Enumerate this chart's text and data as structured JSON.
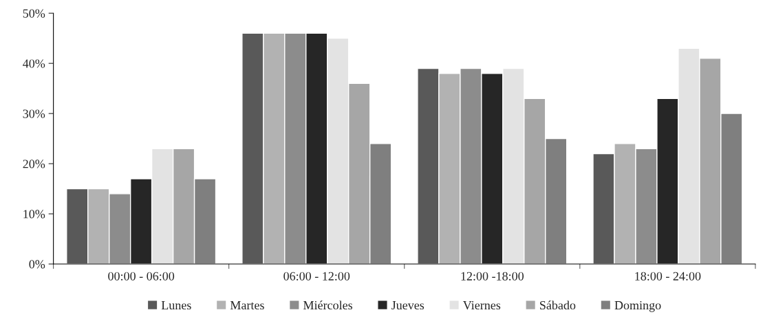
{
  "chart_data": {
    "type": "bar",
    "categories": [
      "00:00 - 06:00",
      "06:00 - 12:00",
      "12:00 -18:00",
      "18:00 - 24:00"
    ],
    "series": [
      {
        "name": "Lunes",
        "color": "#595959",
        "values": [
          15,
          46,
          39,
          22
        ]
      },
      {
        "name": "Martes",
        "color": "#b2b2b2",
        "values": [
          15,
          46,
          38,
          24
        ]
      },
      {
        "name": "Miércoles",
        "color": "#8c8c8c",
        "values": [
          14,
          46,
          39,
          23
        ]
      },
      {
        "name": "Jueves",
        "color": "#262626",
        "values": [
          17,
          46,
          38,
          33
        ]
      },
      {
        "name": "Viernes",
        "color": "#e3e3e3",
        "values": [
          23,
          45,
          39,
          43
        ]
      },
      {
        "name": "Sábado",
        "color": "#a6a6a6",
        "values": [
          23,
          36,
          33,
          41
        ]
      },
      {
        "name": "Domingo",
        "color": "#7f7f7f",
        "values": [
          17,
          24,
          25,
          30
        ]
      }
    ],
    "ylim": [
      0,
      50
    ],
    "yticks": [
      {
        "value": 0,
        "label": "0%"
      },
      {
        "value": 10,
        "label": "10%"
      },
      {
        "value": 20,
        "label": "20%"
      },
      {
        "value": 30,
        "label": "30%"
      },
      {
        "value": 40,
        "label": "40%"
      },
      {
        "value": 50,
        "label": "50%"
      }
    ],
    "grid": false,
    "legend": "bottom"
  }
}
